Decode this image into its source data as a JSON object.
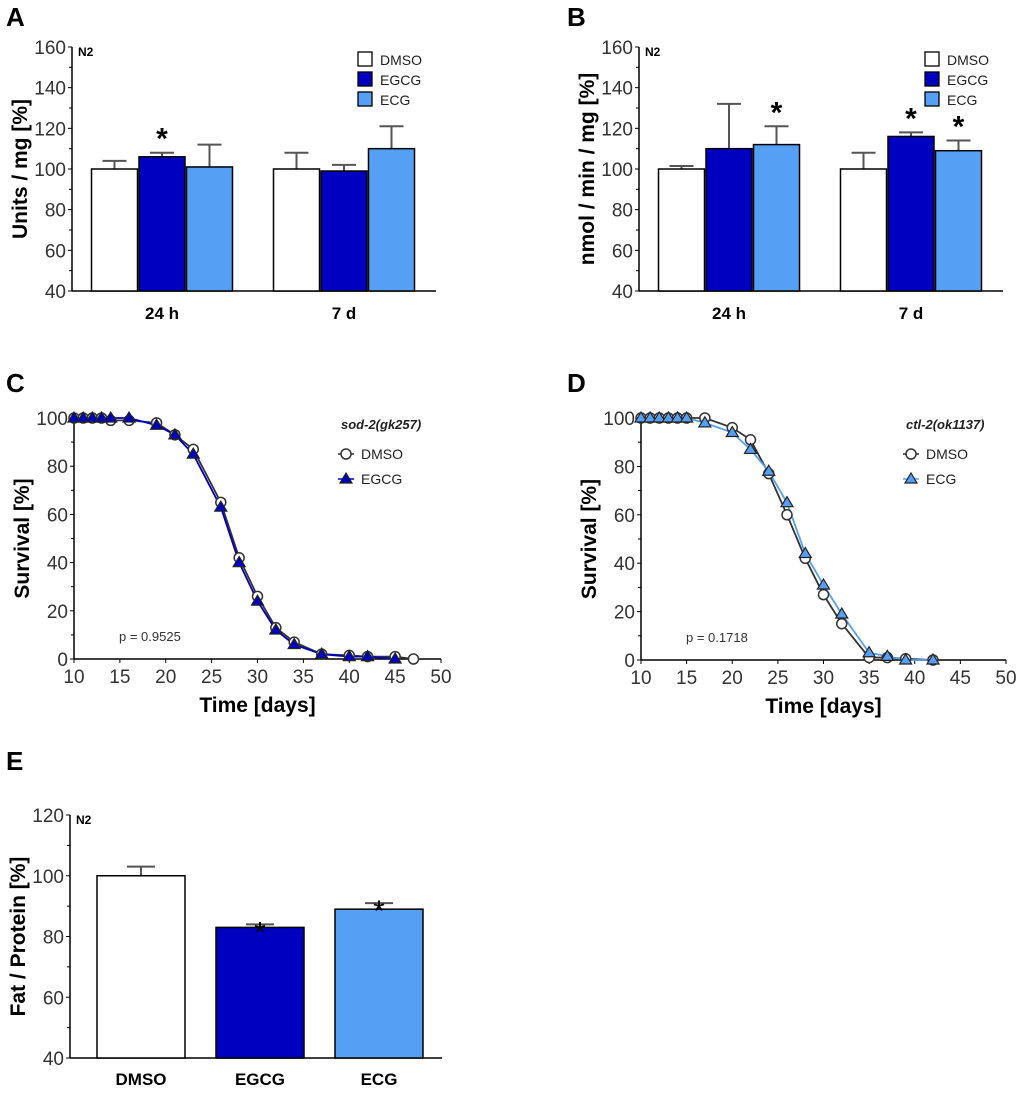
{
  "chart_data": [
    {
      "panel": "A",
      "type": "bar",
      "tag": "N2",
      "ylabel": "Units / mg [%]",
      "ylim": [
        40,
        160
      ],
      "yticks": [
        40,
        60,
        80,
        100,
        120,
        140,
        160
      ],
      "categories": [
        "24 h",
        "7 d"
      ],
      "series": [
        {
          "name": "DMSO",
          "color": "#ffffff",
          "values": [
            100,
            100
          ],
          "errors": [
            4,
            8
          ],
          "sig": [
            false,
            false
          ]
        },
        {
          "name": "EGCG",
          "color": "#0000c0",
          "values": [
            106,
            99
          ],
          "errors": [
            2,
            3
          ],
          "sig": [
            true,
            false
          ]
        },
        {
          "name": "ECG",
          "color": "#55a0f5",
          "values": [
            101,
            110
          ],
          "errors": [
            11,
            11
          ],
          "sig": [
            false,
            false
          ]
        }
      ],
      "sig_mark": "*"
    },
    {
      "panel": "B",
      "type": "bar",
      "tag": "N2",
      "ylabel": "nmol / min / mg [%]",
      "ylim": [
        40,
        160
      ],
      "yticks": [
        40,
        60,
        80,
        100,
        120,
        140,
        160
      ],
      "categories": [
        "24 h",
        "7 d"
      ],
      "series": [
        {
          "name": "DMSO",
          "color": "#ffffff",
          "values": [
            100,
            100
          ],
          "errors": [
            1.5,
            8
          ],
          "sig": [
            false,
            false
          ]
        },
        {
          "name": "EGCG",
          "color": "#0000c0",
          "values": [
            110,
            116
          ],
          "errors": [
            22,
            2
          ],
          "sig": [
            false,
            true
          ]
        },
        {
          "name": "ECG",
          "color": "#55a0f5",
          "values": [
            112,
            109
          ],
          "errors": [
            9,
            5
          ],
          "sig": [
            true,
            true
          ]
        }
      ],
      "sig_mark": "*"
    },
    {
      "panel": "C",
      "type": "line",
      "legend_title": "sod-2(gk257)",
      "xlabel": "Time [days]",
      "ylabel": "Survival [%]",
      "xlim": [
        10,
        50
      ],
      "ylim": [
        0,
        100
      ],
      "xticks": [
        10,
        15,
        20,
        25,
        30,
        35,
        40,
        45,
        50
      ],
      "yticks": [
        0,
        20,
        40,
        60,
        80,
        100
      ],
      "annotation": "p = 0.9525",
      "series": [
        {
          "name": "DMSO",
          "marker": "circle",
          "color": "#333333",
          "x": [
            10,
            11,
            12,
            13,
            14,
            16,
            19,
            21,
            23,
            26,
            28,
            30,
            32,
            34,
            37,
            40,
            42,
            45,
            47
          ],
          "y": [
            100,
            100,
            100,
            100,
            99,
            99,
            98,
            93,
            87,
            65,
            42,
            26,
            13,
            7,
            2,
            1.5,
            1,
            1,
            0
          ]
        },
        {
          "name": "EGCG",
          "marker": "triangle",
          "color": "#0000c0",
          "x": [
            10,
            11,
            12,
            13,
            14,
            16,
            19,
            21,
            23,
            26,
            28,
            30,
            32,
            34,
            37,
            40,
            42,
            45
          ],
          "y": [
            100,
            100,
            100,
            100,
            100,
            100,
            97,
            93,
            85,
            63,
            40,
            24,
            12,
            6,
            2,
            1,
            1,
            0
          ]
        }
      ]
    },
    {
      "panel": "D",
      "type": "line",
      "legend_title": "ctl-2(ok1137)",
      "xlabel": "Time [days]",
      "ylabel": "Survival [%]",
      "xlim": [
        10,
        50
      ],
      "ylim": [
        0,
        100
      ],
      "xticks": [
        10,
        15,
        20,
        25,
        30,
        35,
        40,
        45,
        50
      ],
      "yticks": [
        0,
        20,
        40,
        60,
        80,
        100
      ],
      "annotation": "p = 0.1718",
      "series": [
        {
          "name": "DMSO",
          "marker": "circle",
          "color": "#333333",
          "x": [
            10,
            11,
            12,
            13,
            14,
            15,
            17,
            20,
            22,
            24,
            26,
            28,
            30,
            32,
            35,
            37,
            39,
            42
          ],
          "y": [
            100,
            100,
            100,
            100,
            100,
            100,
            100,
            96,
            91,
            77,
            60,
            42,
            27,
            15,
            1,
            1,
            0.5,
            0
          ]
        },
        {
          "name": "ECG",
          "marker": "triangle",
          "color": "#55a0f5",
          "x": [
            10,
            11,
            12,
            13,
            14,
            15,
            17,
            20,
            22,
            24,
            26,
            28,
            30,
            32,
            35,
            37,
            39,
            42
          ],
          "y": [
            100,
            100,
            100,
            100,
            100,
            100,
            98,
            94,
            87,
            78,
            65,
            44,
            31,
            19,
            3,
            1.5,
            0,
            0
          ]
        }
      ]
    },
    {
      "panel": "E",
      "type": "bar",
      "tag": "N2",
      "ylabel": "Fat / Protein [%]",
      "ylim": [
        40,
        120
      ],
      "yticks": [
        40,
        60,
        80,
        100,
        120
      ],
      "categories": [
        "DMSO",
        "EGCG",
        "ECG"
      ],
      "values": [
        100,
        83,
        89
      ],
      "errors": [
        3,
        1,
        2
      ],
      "colors": [
        "#ffffff",
        "#0000c0",
        "#55a0f5"
      ],
      "sig": [
        false,
        true,
        true
      ],
      "sig_mark": "*"
    }
  ]
}
